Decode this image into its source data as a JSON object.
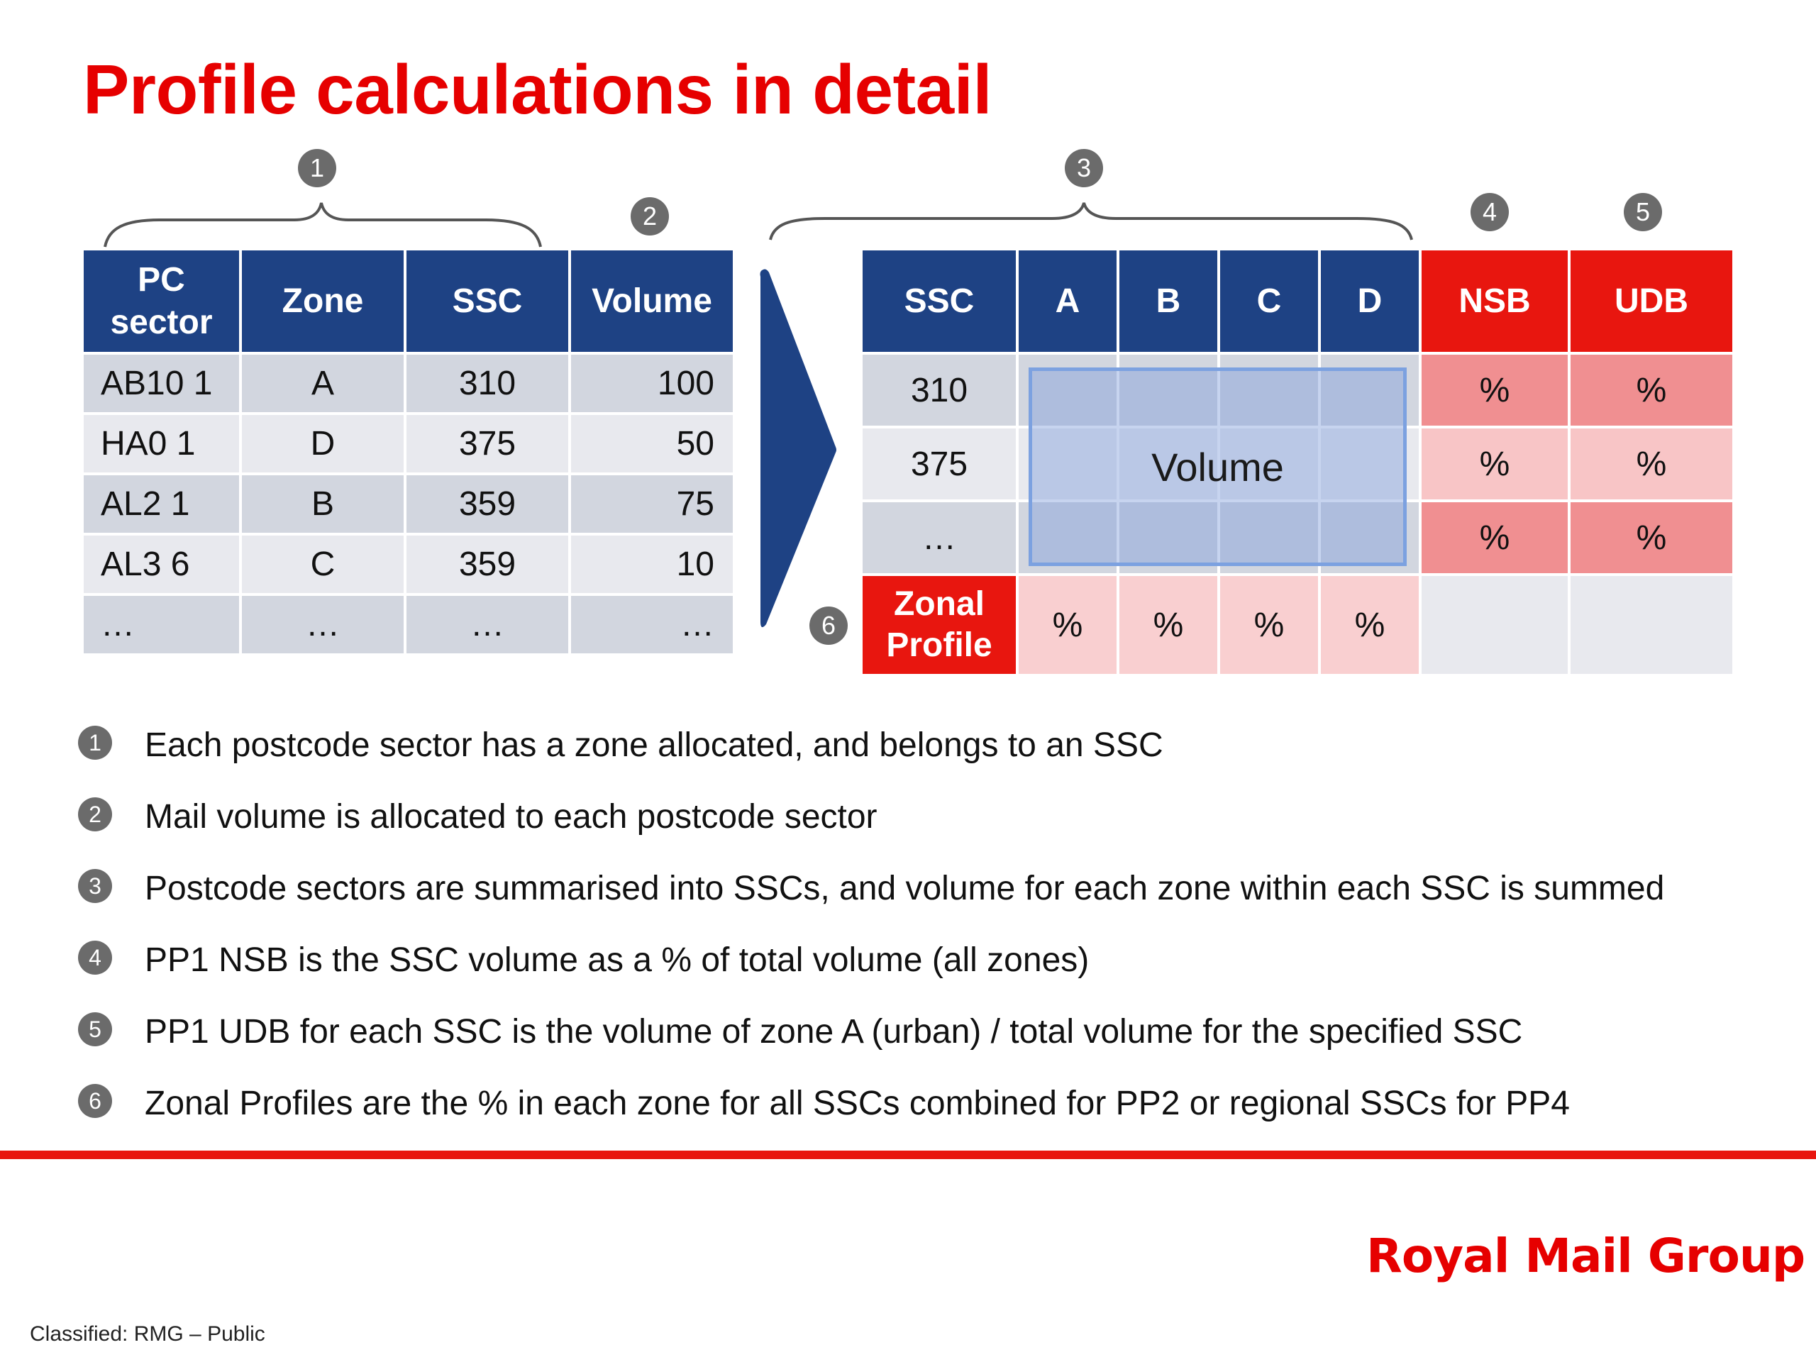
{
  "title": "Profile calculations in detail",
  "markers": [
    "1",
    "2",
    "3",
    "4",
    "5",
    "6"
  ],
  "left_table": {
    "headers": [
      "PC sector",
      "Zone",
      "SSC",
      "Volume"
    ],
    "rows": [
      [
        "AB10 1",
        "A",
        "310",
        "100"
      ],
      [
        "HA0 1",
        "D",
        "375",
        "50"
      ],
      [
        "AL2 1",
        "B",
        "359",
        "75"
      ],
      [
        "AL3 6",
        "C",
        "359",
        "10"
      ],
      [
        "…",
        "…",
        "…",
        "…"
      ]
    ]
  },
  "right_table": {
    "headers": [
      "SSC",
      "A",
      "B",
      "C",
      "D",
      "NSB",
      "UDB"
    ],
    "ssc_rows": [
      "310",
      "375",
      "…"
    ],
    "percent": "%",
    "volume_label": "Volume",
    "zonal_profile": "Zonal Profile"
  },
  "notes": [
    "Each postcode sector has a zone allocated, and belongs to an SSC",
    "Mail volume is allocated to each postcode sector",
    "Postcode sectors are summarised into SSCs, and volume for each zone within each SSC is summed",
    "PP1 NSB is the SSC volume as a % of total volume (all zones)",
    "PP1 UDB for each SSC is the volume of zone A (urban) / total volume for the specified SSC",
    "Zonal Profiles are the % in each zone for all SSCs combined for PP2 or regional SSCs for PP4"
  ],
  "logo": "Royal Mail Group",
  "classification": "Classified: RMG – Public",
  "colors": {
    "brand_red": "#e8160f",
    "header_blue": "#1e4284"
  }
}
